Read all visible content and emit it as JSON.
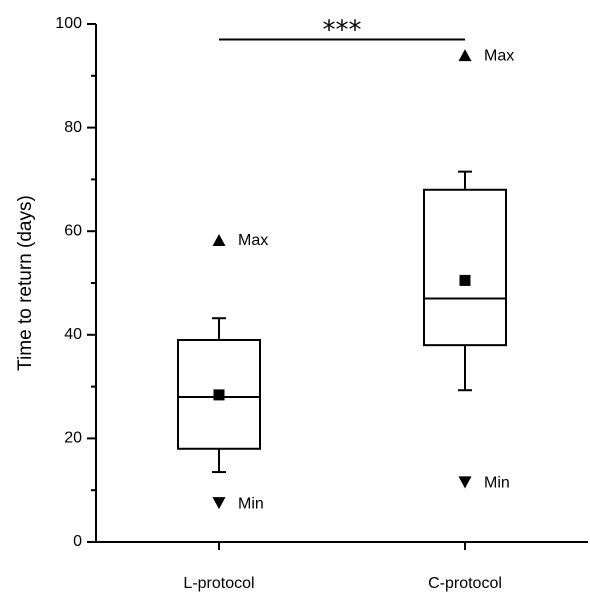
{
  "chart_data": {
    "type": "box",
    "title": "",
    "xlabel": "",
    "ylabel": "Time to return (days)",
    "ylim": [
      0,
      100
    ],
    "yticks": [
      0,
      20,
      40,
      60,
      80,
      100
    ],
    "categories": [
      "L-protocol",
      "C-protocol"
    ],
    "boxes": [
      {
        "category": "L-protocol",
        "whisker_low": 13.5,
        "q1": 18,
        "median": 28,
        "q3": 39,
        "whisker_high": 43.2,
        "mean": 28.4,
        "max": 58.3,
        "min": 7.5,
        "max_label": "Max",
        "min_label": "Min"
      },
      {
        "category": "C-protocol",
        "whisker_low": 29.3,
        "q1": 38,
        "median": 47,
        "q3": 68,
        "whisker_high": 71.5,
        "mean": 50.5,
        "max": 94,
        "min": 11.5,
        "max_label": "Max",
        "min_label": "Min"
      }
    ],
    "significance": {
      "label": "***",
      "between": [
        "L-protocol",
        "C-protocol"
      ],
      "y": 97
    },
    "grid": false,
    "legend": "none"
  }
}
